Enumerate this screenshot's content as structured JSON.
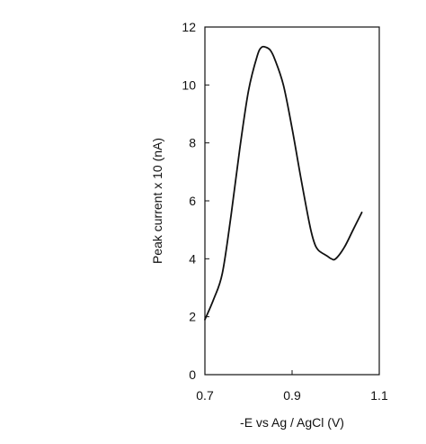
{
  "chart_data": {
    "type": "line",
    "title": "",
    "xlabel": "-E vs Ag / AgCl (V)",
    "ylabel": "Peak current x 10 (nA)",
    "xlim": [
      0.7,
      1.1
    ],
    "ylim": [
      0,
      12
    ],
    "xticks": [
      0.7,
      0.9,
      1.1
    ],
    "xtick_labels": [
      "0.7",
      "0.9",
      "1.1"
    ],
    "yticks": [
      0,
      2,
      4,
      6,
      8,
      10,
      12
    ],
    "ytick_labels": [
      "0",
      "2",
      "4",
      "6",
      "8",
      "10",
      "12"
    ],
    "grid": false,
    "legend": "none",
    "line_color": "#111111",
    "series": [
      {
        "x": [
          0.7,
          0.72,
          0.74,
          0.76,
          0.78,
          0.8,
          0.82,
          0.83,
          0.84,
          0.85,
          0.86,
          0.88,
          0.9,
          0.92,
          0.94,
          0.95,
          0.96,
          0.98,
          0.99,
          1.0,
          1.02,
          1.04,
          1.06
        ],
        "y": [
          1.9,
          2.6,
          3.5,
          5.5,
          7.8,
          9.8,
          11.0,
          11.3,
          11.3,
          11.2,
          10.9,
          10.0,
          8.5,
          6.8,
          5.2,
          4.6,
          4.3,
          4.1,
          4.0,
          4.0,
          4.4,
          5.0,
          5.6
        ]
      }
    ]
  }
}
